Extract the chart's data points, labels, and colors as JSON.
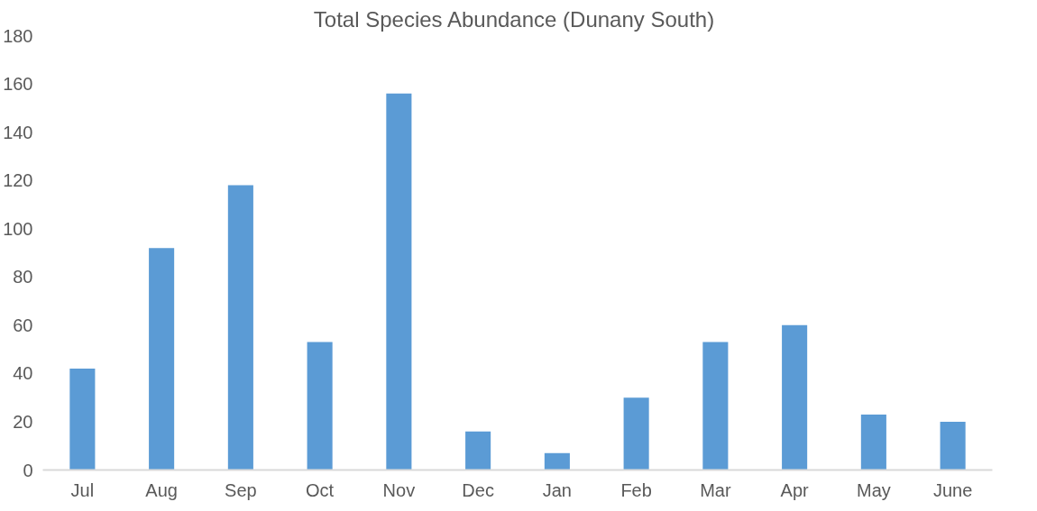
{
  "chart_data": {
    "type": "bar",
    "title": "Total  Species Abundance (Dunany South)",
    "categories": [
      "Jul",
      "Aug",
      "Sep",
      "Oct",
      "Nov",
      "Dec",
      "Jan",
      "Feb",
      "Mar",
      "Apr",
      "May",
      "June"
    ],
    "values": [
      42,
      92,
      118,
      53,
      156,
      16,
      7,
      30,
      53,
      60,
      23,
      20
    ],
    "color": "#5b9bd5",
    "ylim": [
      0,
      180
    ],
    "yticks": [
      0,
      20,
      40,
      60,
      80,
      100,
      120,
      140,
      160,
      180
    ],
    "grid": false
  }
}
